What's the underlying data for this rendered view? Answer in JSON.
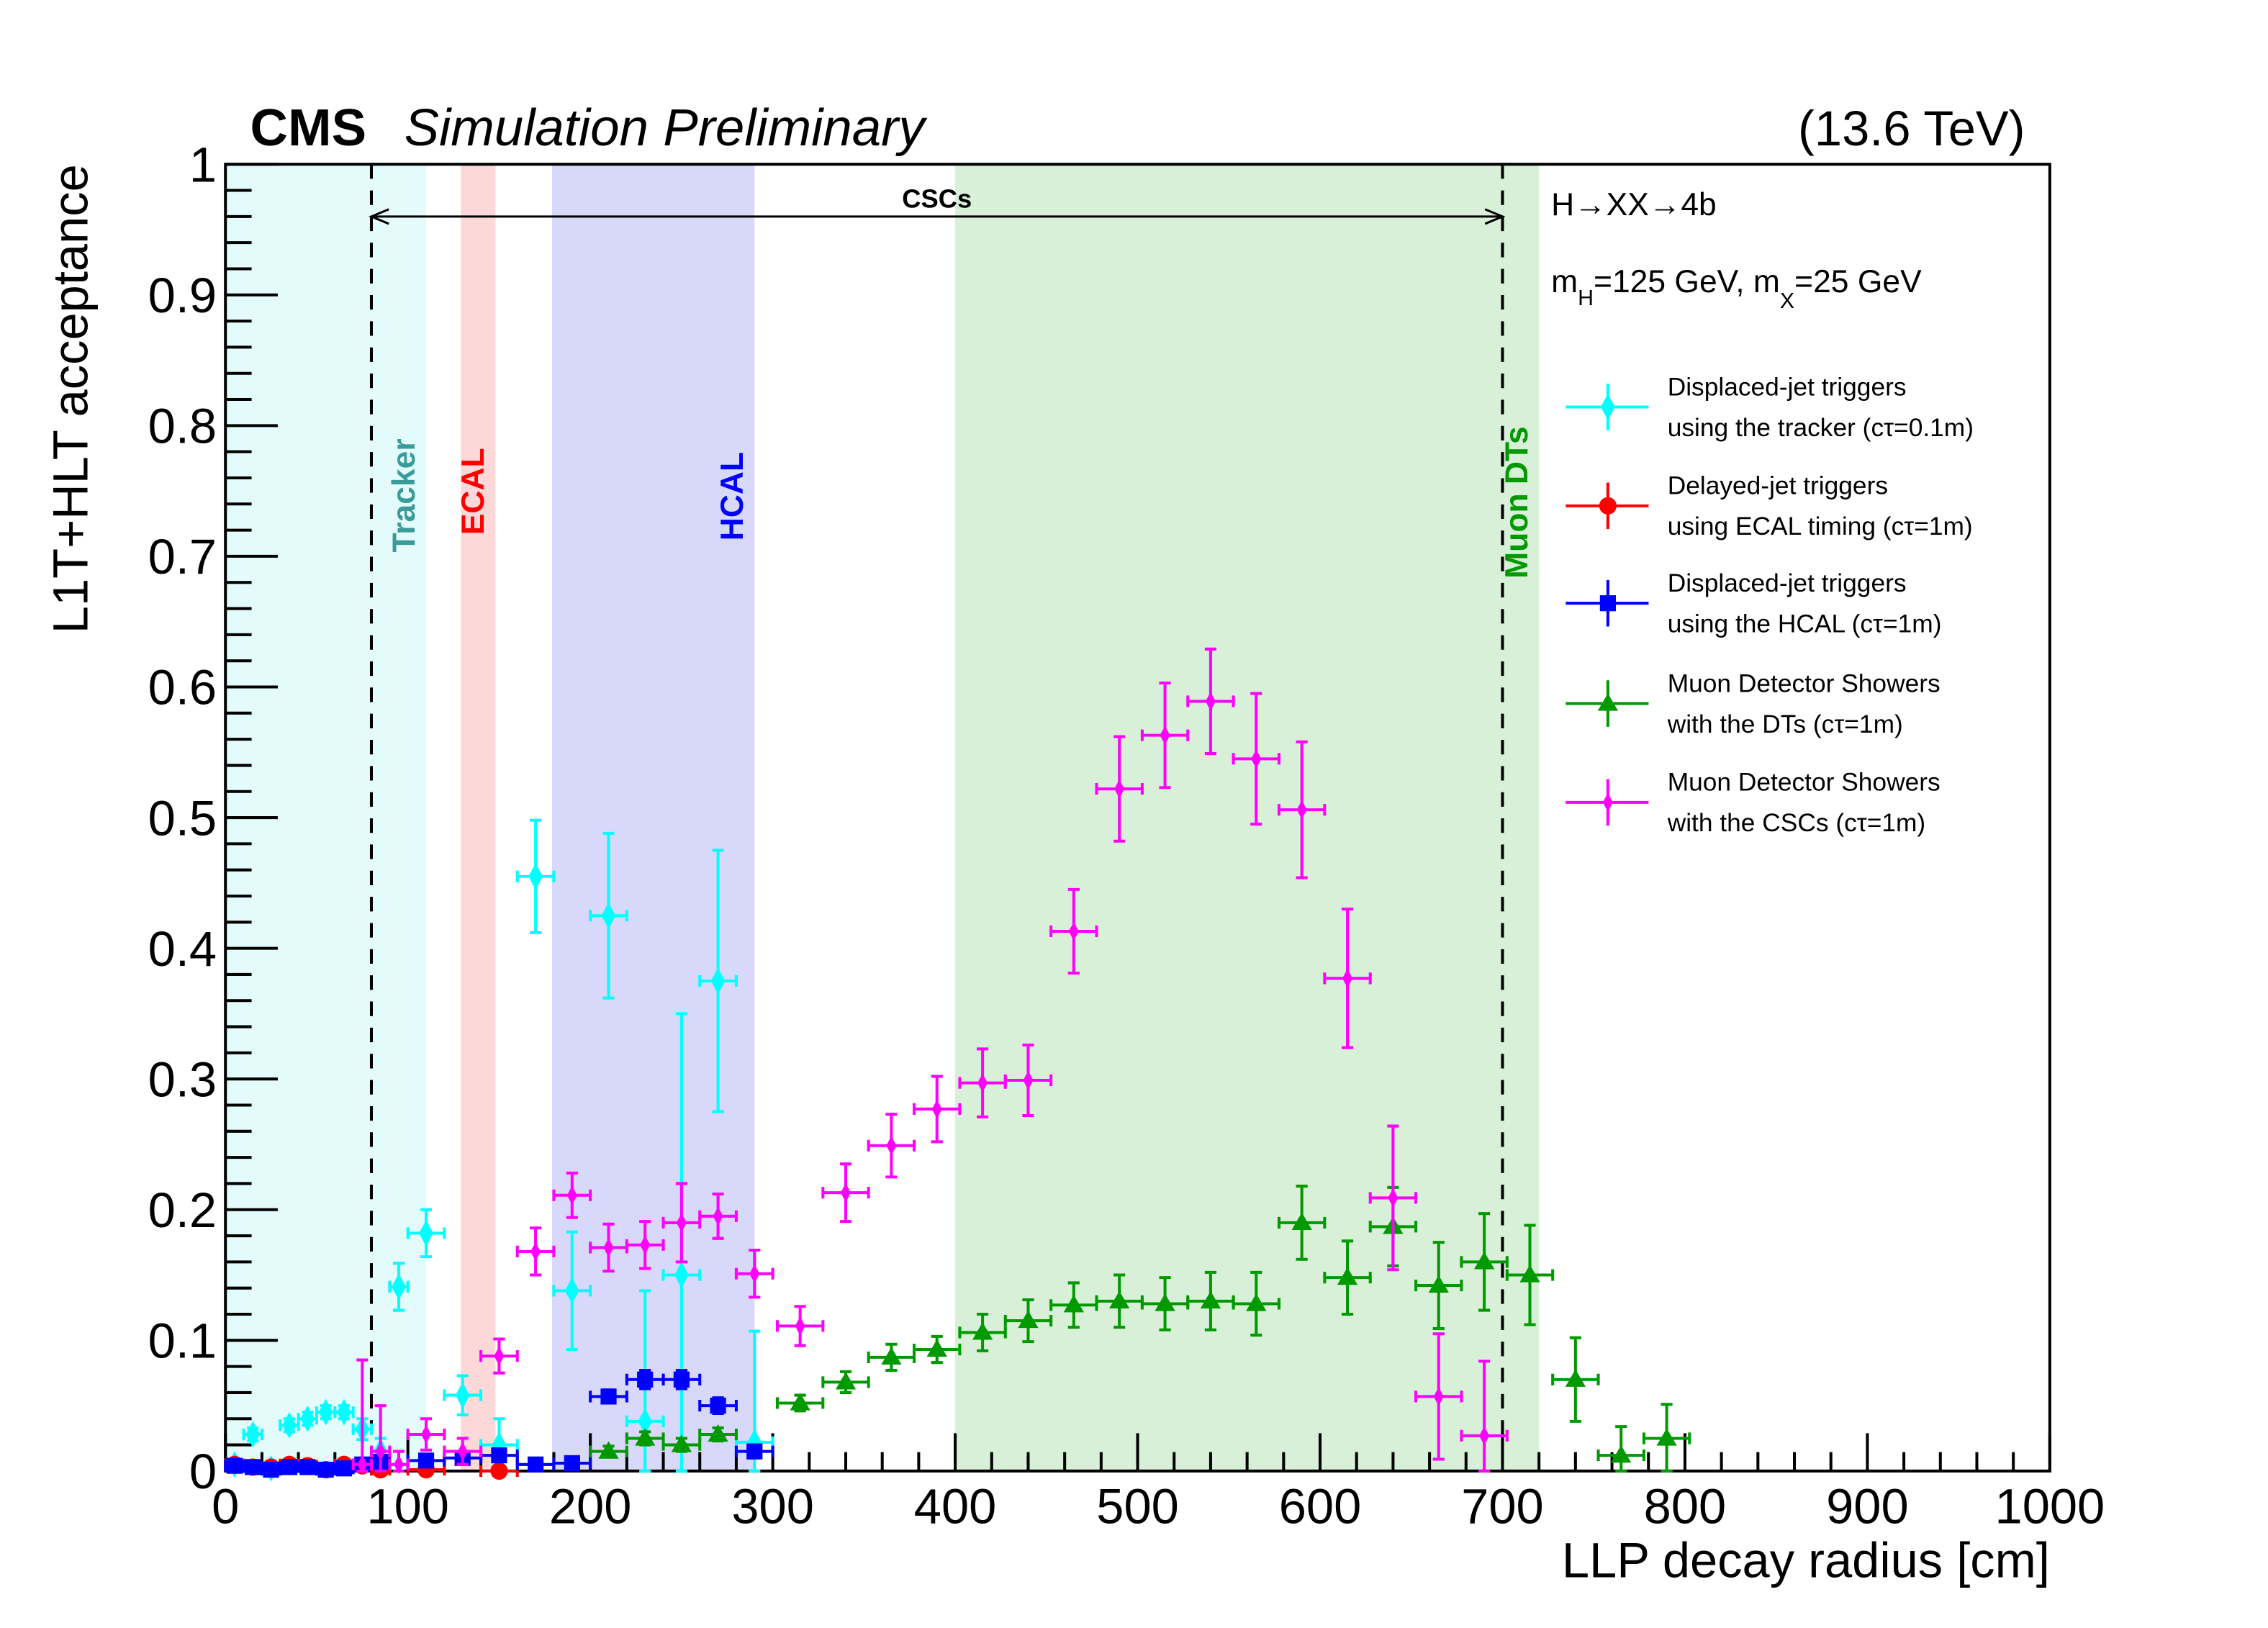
{
  "chart_data": {
    "type": "scatter",
    "header": {
      "experiment": "CMS",
      "status": "Simulation Preliminary",
      "energy": "(13.6 TeV)"
    },
    "xlabel": "LLP decay radius [cm]",
    "ylabel": "L1T+HLT acceptance",
    "xlim": [
      0,
      1000
    ],
    "ylim": [
      0,
      1
    ],
    "xticks": [
      "0",
      "100",
      "200",
      "300",
      "400",
      "500",
      "600",
      "700",
      "800",
      "900",
      "1000"
    ],
    "yticks": [
      "0",
      "0.1",
      "0.2",
      "0.3",
      "0.4",
      "0.5",
      "0.6",
      "0.7",
      "0.8",
      "0.9",
      "1"
    ],
    "annotations": {
      "process": "H→XX→4b",
      "masses": "m_H=125 GeV, m_X=25 GeV",
      "masses_parts": [
        "m",
        "H",
        "=125 GeV, m",
        "X",
        "=25 GeV"
      ]
    },
    "regions": [
      {
        "label": "Tracker",
        "range": [
          0,
          110
        ],
        "fill": "#e4fbfb",
        "color": "#3a9b9b"
      },
      {
        "label": "ECAL",
        "range": [
          129,
          148
        ],
        "fill": "#fcd8d8",
        "color": "#ff0000"
      },
      {
        "label": "HCAL",
        "range": [
          179,
          290
        ],
        "fill": "#d8d8fb",
        "color": "#0000ff"
      },
      {
        "label": "Muon DTs",
        "range": [
          400,
          720
        ],
        "fill": "#d8efd8",
        "color": "#009900"
      }
    ],
    "csc": {
      "label": "CSCs",
      "range": [
        80,
        700
      ]
    },
    "series": [
      {
        "name": "Displaced-jet triggers",
        "name2": "using the tracker (cτ=0.1m)",
        "color": "#00ffff",
        "marker": "diamond",
        "x": [
          5,
          15,
          25,
          35,
          45,
          55,
          65,
          75,
          85,
          95,
          110,
          130,
          150,
          170,
          190,
          210,
          230,
          250,
          270,
          290
        ],
        "xerr": [
          5,
          5,
          5,
          5,
          5,
          5,
          5,
          5,
          5,
          5,
          10,
          10,
          10,
          10,
          10,
          10,
          10,
          10,
          10,
          10
        ],
        "y": [
          0.005,
          0.028,
          0.002,
          0.035,
          0.04,
          0.045,
          0.045,
          0.032,
          0.015,
          0.141,
          0.182,
          0.058,
          0.02,
          0.455,
          0.138,
          0.425,
          0.038,
          0.15,
          0.375,
          0.022
        ],
        "yerr": [
          0.004,
          0.005,
          0.003,
          0.005,
          0.005,
          0.005,
          0.005,
          0.008,
          0.01,
          0.018,
          0.018,
          0.015,
          0.02,
          0.043,
          0.045,
          0.063,
          0.1,
          0.2,
          0.1,
          0.085
        ]
      },
      {
        "name": "Delayed-jet triggers",
        "name2": "using ECAL timing (cτ=1m)",
        "color": "#ff0000",
        "marker": "circle",
        "x": [
          5,
          15,
          25,
          35,
          45,
          55,
          65,
          75,
          85,
          110,
          150
        ],
        "xerr": [
          5,
          5,
          5,
          5,
          5,
          5,
          5,
          5,
          5,
          10,
          10
        ],
        "y": [
          0.005,
          0.003,
          0.003,
          0.005,
          0.004,
          0.001,
          0.005,
          0.004,
          0.001,
          0.001,
          0.0
        ],
        "yerr": [
          0.002,
          0.002,
          0.002,
          0.002,
          0.002,
          0.002,
          0.002,
          0.002,
          0.002,
          0.002,
          0.002
        ]
      },
      {
        "name": "Displaced-jet triggers",
        "name2": "using the HCAL (cτ=1m)",
        "color": "#0000ff",
        "marker": "square",
        "x": [
          5,
          15,
          25,
          35,
          45,
          55,
          65,
          75,
          85,
          110,
          130,
          150,
          170,
          190,
          210,
          230,
          250,
          270,
          290
        ],
        "xerr": [
          5,
          5,
          5,
          5,
          5,
          5,
          5,
          5,
          5,
          10,
          10,
          10,
          10,
          10,
          10,
          10,
          10,
          10,
          10
        ],
        "y": [
          0.004,
          0.003,
          0.001,
          0.003,
          0.003,
          0.001,
          0.002,
          0.005,
          0.007,
          0.008,
          0.01,
          0.012,
          0.005,
          0.006,
          0.057,
          0.07,
          0.07,
          0.05,
          0.015
        ],
        "yerr": [
          0.002,
          0.002,
          0.002,
          0.002,
          0.002,
          0.002,
          0.002,
          0.002,
          0.003,
          0.003,
          0.003,
          0.003,
          0.003,
          0.003,
          0.005,
          0.007,
          0.007,
          0.006,
          0.005
        ]
      },
      {
        "name": "Muon Detector Showers",
        "name2": "with the DTs (cτ=1m)",
        "color": "#009900",
        "marker": "triangle",
        "x": [
          210,
          230,
          250,
          270,
          315,
          340,
          365,
          390,
          415,
          440,
          465,
          490,
          515,
          540,
          565,
          590,
          615,
          640,
          665,
          690,
          715,
          740,
          765,
          790
        ],
        "xerr": [
          10,
          10,
          10,
          10,
          12.5,
          12.5,
          12.5,
          12.5,
          12.5,
          12.5,
          12.5,
          12.5,
          12.5,
          12.5,
          12.5,
          12.5,
          12.5,
          12.5,
          12.5,
          12.5,
          12.5,
          12.5,
          12.5,
          12.5
        ],
        "y": [
          0.015,
          0.025,
          0.02,
          0.028,
          0.052,
          0.068,
          0.087,
          0.093,
          0.106,
          0.115,
          0.127,
          0.13,
          0.128,
          0.13,
          0.128,
          0.19,
          0.148,
          0.187,
          0.142,
          0.16,
          0.15,
          0.07,
          0.012,
          0.025
        ],
        "yerr": [
          0.004,
          0.005,
          0.005,
          0.005,
          0.006,
          0.008,
          0.01,
          0.01,
          0.014,
          0.016,
          0.017,
          0.02,
          0.02,
          0.022,
          0.024,
          0.028,
          0.028,
          0.03,
          0.033,
          0.037,
          0.038,
          0.032,
          0.022,
          0.026
        ]
      },
      {
        "name": "Muon Detector Showers",
        "name2": "with the CSCs (cτ=1m)",
        "color": "#ff00ff",
        "marker": "diamond-small",
        "x": [
          75,
          85,
          95,
          110,
          130,
          150,
          170,
          190,
          210,
          230,
          250,
          270,
          290,
          315,
          340,
          365,
          390,
          415,
          440,
          465,
          490,
          515,
          540,
          565,
          590,
          615,
          640,
          665,
          690
        ],
        "xerr": [
          5,
          5,
          5,
          10,
          10,
          10,
          10,
          10,
          10,
          10,
          10,
          10,
          10,
          12.5,
          12.5,
          12.5,
          12.5,
          12.5,
          12.5,
          12.5,
          12.5,
          12.5,
          12.5,
          12.5,
          12.5,
          12.5,
          12.5,
          12.5,
          12.5
        ],
        "y": [
          0.005,
          0.015,
          0.005,
          0.028,
          0.015,
          0.088,
          0.168,
          0.211,
          0.171,
          0.173,
          0.19,
          0.195,
          0.151,
          0.111,
          0.213,
          0.249,
          0.277,
          0.297,
          0.299,
          0.413,
          0.522,
          0.563,
          0.589,
          0.545,
          0.506,
          0.377,
          0.209,
          0.057,
          0.027
        ],
        "yerr": [
          0.08,
          0.035,
          0.01,
          0.012,
          0.01,
          0.013,
          0.018,
          0.017,
          0.018,
          0.018,
          0.03,
          0.017,
          0.018,
          0.015,
          0.022,
          0.024,
          0.025,
          0.026,
          0.027,
          0.032,
          0.04,
          0.04,
          0.04,
          0.05,
          0.052,
          0.053,
          0.055,
          0.048,
          0.057
        ]
      }
    ]
  }
}
